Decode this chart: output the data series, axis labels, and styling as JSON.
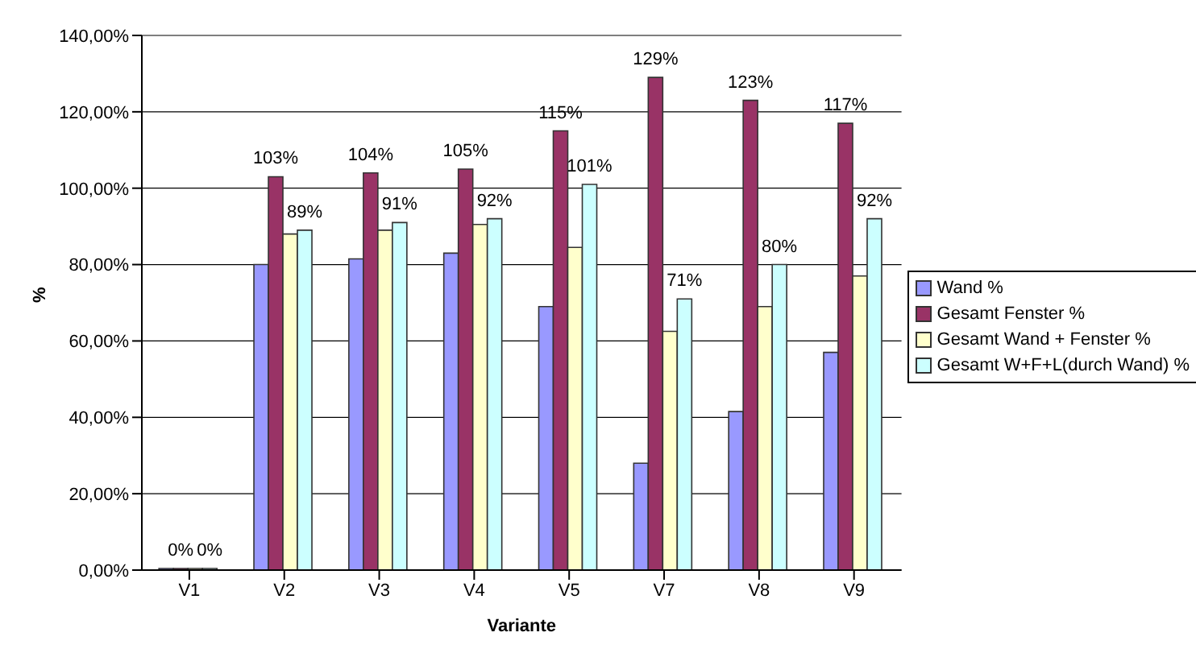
{
  "chart_data": {
    "type": "bar",
    "xlabel": "Variante",
    "ylabel": "%",
    "categories": [
      "V1",
      "V2",
      "V3",
      "V4",
      "V5",
      "V7",
      "V8",
      "V9"
    ],
    "series": [
      {
        "name": "Wand %",
        "color": "#9999ff",
        "values": [
          0,
          80,
          81.5,
          83,
          69,
          28,
          41.5,
          57
        ]
      },
      {
        "name": "Gesamt Fenster %",
        "color": "#993366",
        "values": [
          0,
          103,
          104,
          105,
          115,
          129,
          123,
          117
        ],
        "value_labels": [
          "0%",
          "103%",
          "104%",
          "105%",
          "115%",
          "129%",
          "123%",
          "117%"
        ]
      },
      {
        "name": "Gesamt Wand + Fenster %",
        "color": "#ffffcc",
        "values": [
          0,
          88,
          89,
          90.5,
          84.5,
          62.5,
          69,
          77
        ]
      },
      {
        "name": "Gesamt W+F+L(durch Wand) %",
        "color": "#ccffff",
        "values": [
          0,
          89,
          91,
          92,
          101,
          71,
          80,
          92
        ],
        "value_labels": [
          "0%",
          "89%",
          "91%",
          "92%",
          "101%",
          "71%",
          "80%",
          "92%"
        ]
      }
    ],
    "ylim": [
      0,
      140
    ],
    "yticks": [
      {
        "value": 0,
        "label": "0,00%"
      },
      {
        "value": 20,
        "label": "20,00%"
      },
      {
        "value": 40,
        "label": "40,00%"
      },
      {
        "value": 60,
        "label": "60,00%"
      },
      {
        "value": 80,
        "label": "80,00%"
      },
      {
        "value": 100,
        "label": "100,00%"
      },
      {
        "value": 120,
        "label": "120,00%"
      },
      {
        "value": 140,
        "label": "140,00%"
      }
    ],
    "grid": "y",
    "legend": "right"
  }
}
